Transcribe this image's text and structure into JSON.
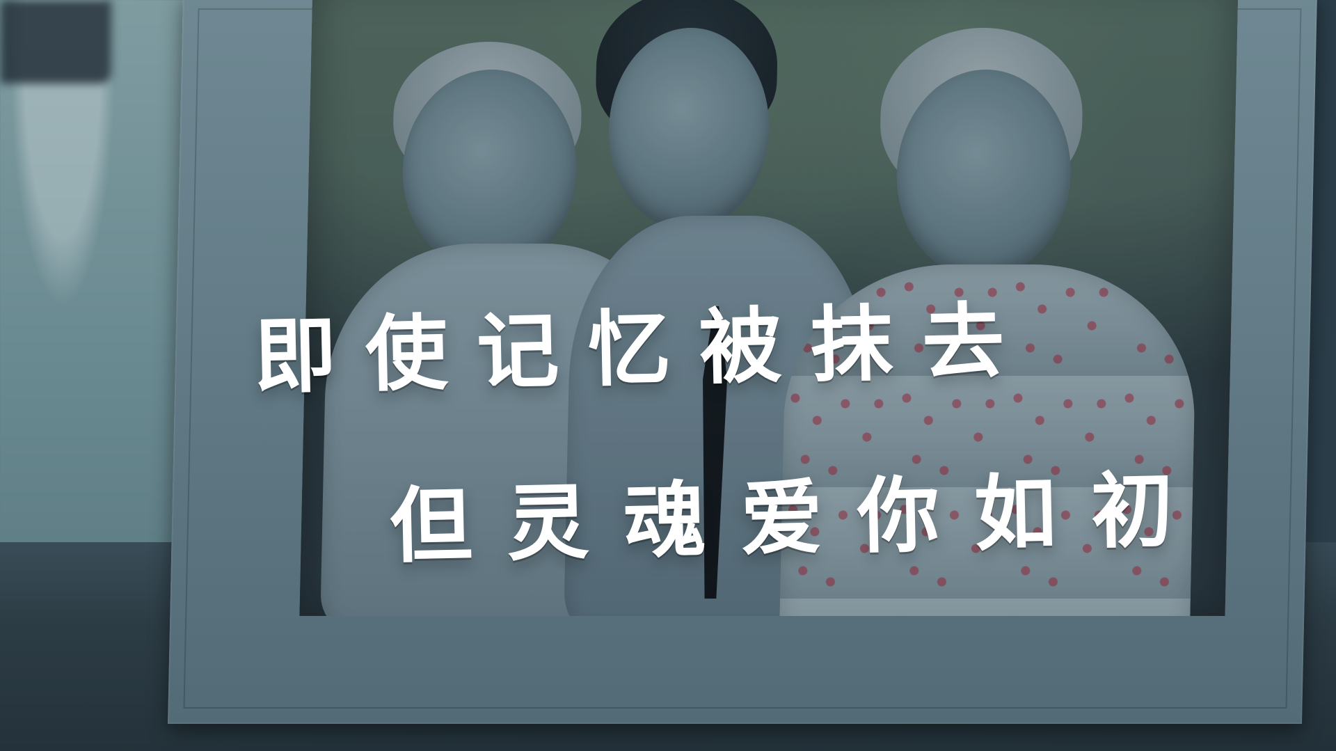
{
  "caption": {
    "line1": "即使记忆被抹去",
    "line2": "但灵魂爱你如初"
  },
  "colors": {
    "caption_text": "#ffffff",
    "frame": "#667f8a",
    "background": "#2a3d49"
  }
}
